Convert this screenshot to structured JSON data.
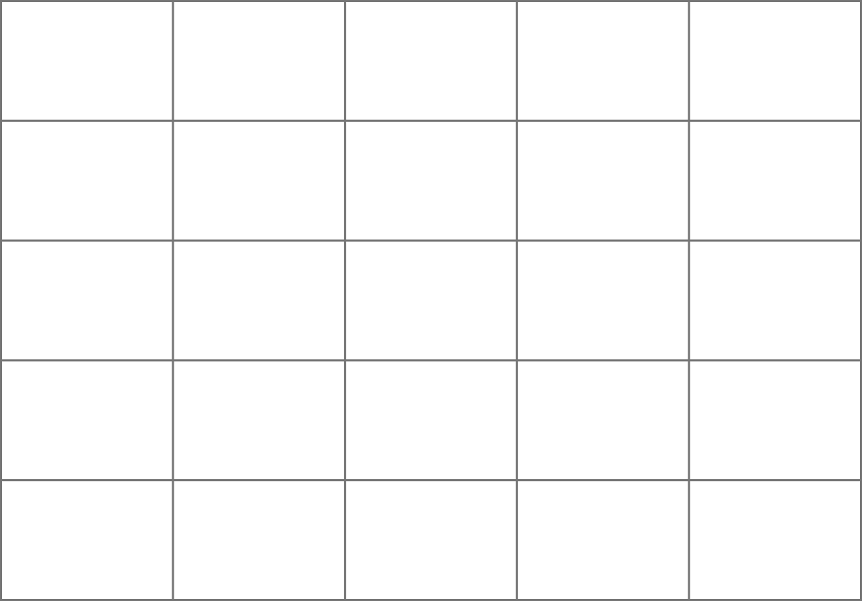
{
  "grid": {
    "rows": 5,
    "columns": 5,
    "line_color": "#767676",
    "background_color": "#ffffff",
    "cells": [
      [
        "",
        "",
        "",
        "",
        ""
      ],
      [
        "",
        "",
        "",
        "",
        ""
      ],
      [
        "",
        "",
        "",
        "",
        ""
      ],
      [
        "",
        "",
        "",
        "",
        ""
      ],
      [
        "",
        "",
        "",
        "",
        ""
      ]
    ]
  }
}
